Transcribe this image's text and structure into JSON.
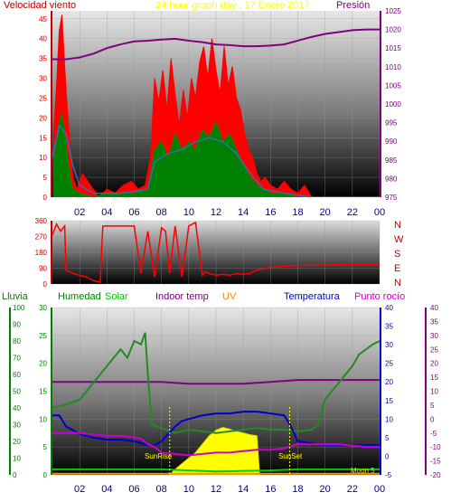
{
  "header": {
    "wind_label": "Velocidad viento",
    "title": "24 hour graph day : 17 Enero 2017",
    "pressure_label": "Presión"
  },
  "legend": {
    "rain": "Lluvia",
    "humidity": "Humedad",
    "solar": "Solar",
    "indoor": "Indoor temp",
    "uv": "UV",
    "temperature": "Temperatura",
    "dewpoint": "Punto rocío"
  },
  "annotations": {
    "sunrise": "SunRise",
    "sunset": "SunSet",
    "moon": "Moon 5"
  },
  "colors": {
    "wind_gust": "#ff0000",
    "wind_avg": "#008000",
    "wind_trend": "#3070b0",
    "pressure": "#800080",
    "direction": "#ff0000",
    "humidity": "#228b22",
    "temperature": "#0000cd",
    "dewpoint": "#cc00cc",
    "indoor": "#800080",
    "solar_max": "#00cc00",
    "solar": "#ffff00",
    "uv": "#ff8c00"
  },
  "chart_data": [
    {
      "type": "line",
      "name": "wind-pressure",
      "xlabels": [
        "02",
        "04",
        "06",
        "08",
        "10",
        "12",
        "14",
        "16",
        "18",
        "20",
        "22",
        "00"
      ],
      "xlim": [
        0,
        24
      ],
      "y_left": {
        "ticks": [
          "0",
          "5",
          "10",
          "15",
          "20",
          "25",
          "30",
          "35",
          "40",
          "45"
        ],
        "lim": [
          0,
          47
        ]
      },
      "y_right": {
        "ticks": [
          "975",
          "980",
          "985",
          "990",
          "995",
          "1000",
          "1005",
          "1010",
          "1015",
          "1020",
          "1025"
        ],
        "lim": [
          975,
          1025
        ]
      },
      "pressure": {
        "x": [
          0,
          1,
          2,
          3,
          4,
          5,
          6,
          7,
          8,
          9,
          10,
          11,
          12,
          13,
          14,
          15,
          16,
          17,
          18,
          19,
          20,
          21,
          22,
          23,
          24
        ],
        "y": [
          1012,
          1012,
          1012.5,
          1013.5,
          1015,
          1016,
          1016.8,
          1017,
          1017.3,
          1017.5,
          1017,
          1016.6,
          1016,
          1015.8,
          1015.5,
          1015.5,
          1015.7,
          1016,
          1017,
          1018,
          1018.8,
          1019.3,
          1019.8,
          1020,
          1020
        ]
      },
      "gust_peaks": [
        [
          0.1,
          16
        ],
        [
          0.3,
          28
        ],
        [
          0.5,
          42
        ],
        [
          0.7,
          46
        ],
        [
          0.9,
          33
        ],
        [
          1.1,
          22
        ],
        [
          1.3,
          12
        ],
        [
          1.5,
          5
        ],
        [
          1.8,
          2
        ],
        [
          2.2,
          6
        ],
        [
          2.8,
          3
        ],
        [
          3.4,
          0
        ],
        [
          4.0,
          2
        ],
        [
          4.6,
          1
        ],
        [
          5.2,
          3
        ],
        [
          5.8,
          4
        ],
        [
          6.3,
          2
        ],
        [
          6.8,
          3
        ],
        [
          7.2,
          10
        ],
        [
          7.5,
          30
        ],
        [
          7.8,
          24
        ],
        [
          8.1,
          32
        ],
        [
          8.4,
          22
        ],
        [
          8.7,
          35
        ],
        [
          9.0,
          26
        ],
        [
          9.3,
          18
        ],
        [
          9.6,
          27
        ],
        [
          9.9,
          20
        ],
        [
          10.2,
          30
        ],
        [
          10.5,
          25
        ],
        [
          10.8,
          34
        ],
        [
          11.1,
          38
        ],
        [
          11.4,
          30
        ],
        [
          11.7,
          40
        ],
        [
          12.0,
          32
        ],
        [
          12.3,
          26
        ],
        [
          12.6,
          38
        ],
        [
          12.9,
          28
        ],
        [
          13.2,
          33
        ],
        [
          13.5,
          25
        ],
        [
          13.8,
          22
        ],
        [
          14.1,
          16
        ],
        [
          14.4,
          12
        ],
        [
          14.7,
          10
        ],
        [
          15.0,
          6
        ],
        [
          15.3,
          4
        ],
        [
          15.6,
          5
        ],
        [
          16.0,
          3
        ],
        [
          16.5,
          2
        ],
        [
          17.0,
          4
        ],
        [
          17.5,
          2
        ],
        [
          18.0,
          1
        ],
        [
          18.5,
          3
        ],
        [
          19.0,
          0
        ],
        [
          20.0,
          0
        ],
        [
          21.0,
          0
        ],
        [
          22.0,
          0
        ],
        [
          23.0,
          0
        ],
        [
          24.0,
          0
        ]
      ],
      "avg_peaks": [
        [
          0.1,
          8
        ],
        [
          0.3,
          15
        ],
        [
          0.5,
          19
        ],
        [
          0.7,
          21
        ],
        [
          0.9,
          16
        ],
        [
          1.1,
          10
        ],
        [
          1.3,
          5
        ],
        [
          1.5,
          2
        ],
        [
          2.0,
          1
        ],
        [
          3.0,
          0
        ],
        [
          4.0,
          1
        ],
        [
          5.0,
          1
        ],
        [
          6.0,
          1
        ],
        [
          7.0,
          2
        ],
        [
          7.5,
          12
        ],
        [
          8.0,
          14
        ],
        [
          8.5,
          10
        ],
        [
          9.0,
          16
        ],
        [
          9.5,
          12
        ],
        [
          10.0,
          14
        ],
        [
          10.5,
          12
        ],
        [
          11.0,
          17
        ],
        [
          11.5,
          15
        ],
        [
          12.0,
          19
        ],
        [
          12.5,
          14
        ],
        [
          13.0,
          16
        ],
        [
          13.5,
          12
        ],
        [
          14.0,
          8
        ],
        [
          14.5,
          5
        ],
        [
          15.0,
          3
        ],
        [
          16.0,
          1
        ],
        [
          17.0,
          1
        ],
        [
          18.0,
          0
        ],
        [
          20.0,
          0
        ],
        [
          24.0,
          0
        ]
      ],
      "trend": [
        [
          0,
          10
        ],
        [
          0.5,
          18
        ],
        [
          1,
          16
        ],
        [
          1.5,
          8
        ],
        [
          2,
          3
        ],
        [
          3,
          1
        ],
        [
          5,
          1
        ],
        [
          7,
          2
        ],
        [
          7.5,
          9
        ],
        [
          8.5,
          11
        ],
        [
          9.5,
          12
        ],
        [
          10.5,
          14
        ],
        [
          11.5,
          15
        ],
        [
          12.5,
          14
        ],
        [
          13.5,
          11
        ],
        [
          14.5,
          6
        ],
        [
          15.5,
          2
        ],
        [
          17,
          1
        ],
        [
          19,
          0
        ],
        [
          24,
          0
        ]
      ]
    },
    {
      "type": "line",
      "name": "wind-direction",
      "y_left": {
        "ticks": [
          "0",
          "90",
          "180",
          "270",
          "360"
        ],
        "lim": [
          0,
          360
        ]
      },
      "y_right_labels": [
        "N",
        "W",
        "S",
        "E",
        "N"
      ],
      "x": [
        0,
        0.3,
        0.6,
        0.9,
        1.0,
        1.5,
        2.0,
        2.5,
        3.0,
        3.5,
        3.7,
        4.0,
        4.5,
        5.0,
        5.5,
        6.0,
        6.5,
        7.0,
        7.5,
        8.0,
        8.3,
        8.6,
        9.0,
        9.5,
        10.0,
        10.5,
        11.0,
        11.2,
        11.5,
        12.0,
        12.5,
        13.0,
        13.5,
        14.0,
        14.5,
        15.0,
        16.0,
        17.0,
        18.0,
        20.0,
        22.0,
        24.0
      ],
      "y": [
        280,
        340,
        300,
        330,
        80,
        60,
        50,
        40,
        20,
        10,
        330,
        330,
        330,
        330,
        330,
        330,
        60,
        300,
        40,
        320,
        300,
        60,
        330,
        40,
        330,
        350,
        50,
        70,
        60,
        50,
        55,
        50,
        60,
        55,
        60,
        80,
        95,
        100,
        105,
        108,
        110,
        112
      ]
    },
    {
      "type": "line",
      "name": "humidity-temperature",
      "y_left_rain": {
        "ticks": [
          "0",
          "10",
          "20",
          "30",
          "40",
          "50",
          "60",
          "70",
          "80",
          "90",
          "100"
        ],
        "lim": [
          0,
          100
        ]
      },
      "y_left_solar": {
        "ticks": [
          "0",
          "5",
          "10",
          "15",
          "20",
          "25",
          "30"
        ],
        "lim": [
          0,
          30
        ]
      },
      "y_right_temp": {
        "ticks": [
          "-5",
          "0",
          "5",
          "10",
          "15",
          "20",
          "25",
          "30",
          "35",
          "40"
        ],
        "lim": [
          -5,
          40
        ]
      },
      "y_right_dew": {
        "ticks": [
          "-20",
          "-15",
          "-10",
          "-5",
          "0",
          "5",
          "10",
          "15",
          "20",
          "25",
          "30",
          "35",
          "40"
        ],
        "lim": [
          -20,
          40
        ]
      },
      "humidity": {
        "x": [
          0,
          1,
          2,
          3,
          4,
          5,
          5.5,
          6,
          6.5,
          6.8,
          7,
          7.3,
          8,
          9,
          10,
          11,
          12,
          13,
          14,
          15,
          16,
          17,
          18,
          19,
          19.5,
          20,
          20.5,
          21,
          21.5,
          22,
          22.5,
          23,
          23.5,
          24
        ],
        "y": [
          40,
          42,
          45,
          55,
          65,
          75,
          70,
          80,
          78,
          85,
          60,
          30,
          28,
          25,
          27,
          26,
          25,
          26,
          27,
          28,
          27,
          27,
          26,
          27,
          30,
          45,
          50,
          55,
          60,
          65,
          72,
          75,
          78,
          80
        ]
      },
      "temperature": {
        "x": [
          0,
          0.5,
          1,
          1.5,
          2,
          3,
          4,
          5,
          6,
          7,
          7.5,
          8,
          8.5,
          9,
          9.5,
          10,
          11,
          12,
          13,
          14,
          15,
          16,
          17,
          17.5,
          18,
          19,
          20,
          21,
          22,
          23,
          24
        ],
        "y": [
          11,
          11,
          8,
          7,
          6,
          5,
          4.5,
          4.5,
          4,
          3,
          3,
          4,
          6,
          8,
          9.5,
          10,
          11,
          11.5,
          11.5,
          12,
          12,
          11.5,
          11,
          8,
          4,
          3.5,
          3,
          3,
          3,
          3,
          3
        ]
      },
      "dewpoint": {
        "x": [
          0,
          1,
          2,
          3,
          4,
          5,
          6,
          6.5,
          7,
          7.5,
          8,
          9,
          10,
          11,
          12,
          13,
          14,
          15,
          16,
          17,
          18,
          19,
          20,
          21,
          22,
          23,
          24
        ],
        "y": [
          -5,
          -5,
          -5,
          -5.5,
          -6,
          -6,
          -6.5,
          -7,
          -9,
          -10,
          -12,
          -12.5,
          -13,
          -12.5,
          -12,
          -12,
          -11.5,
          -11,
          -11,
          -10.5,
          -9,
          -9,
          -9,
          -9,
          -9.5,
          -10,
          -10
        ]
      },
      "indoor": {
        "x": [
          0,
          4,
          8,
          10,
          12,
          14,
          16,
          18,
          20,
          22,
          24
        ],
        "y": [
          20,
          20,
          20,
          19.5,
          19.5,
          19.5,
          20,
          20.5,
          20.5,
          20.5,
          20.5
        ]
      },
      "solar_max": {
        "x": [
          0,
          6,
          8,
          10,
          12,
          14,
          16,
          18,
          24
        ],
        "y": [
          1,
          1,
          1,
          0.8,
          0.6,
          0.7,
          0.8,
          1,
          1
        ]
      },
      "solar": {
        "x": [
          8.6,
          9.0,
          9.5,
          10.0,
          10.5,
          11.0,
          11.5,
          12.0,
          12.5,
          13.0,
          13.5,
          14.0,
          14.5,
          15.0,
          15.2
        ],
        "y": [
          0,
          1,
          2,
          3,
          4,
          5.5,
          7,
          8,
          8.5,
          8.2,
          7.8,
          7.5,
          7.2,
          7,
          0
        ]
      },
      "uv": {
        "x": [
          0,
          24
        ],
        "y": [
          0.2,
          0.2
        ]
      },
      "sunrise_x": 8.6,
      "sunset_x": 17.4
    }
  ]
}
